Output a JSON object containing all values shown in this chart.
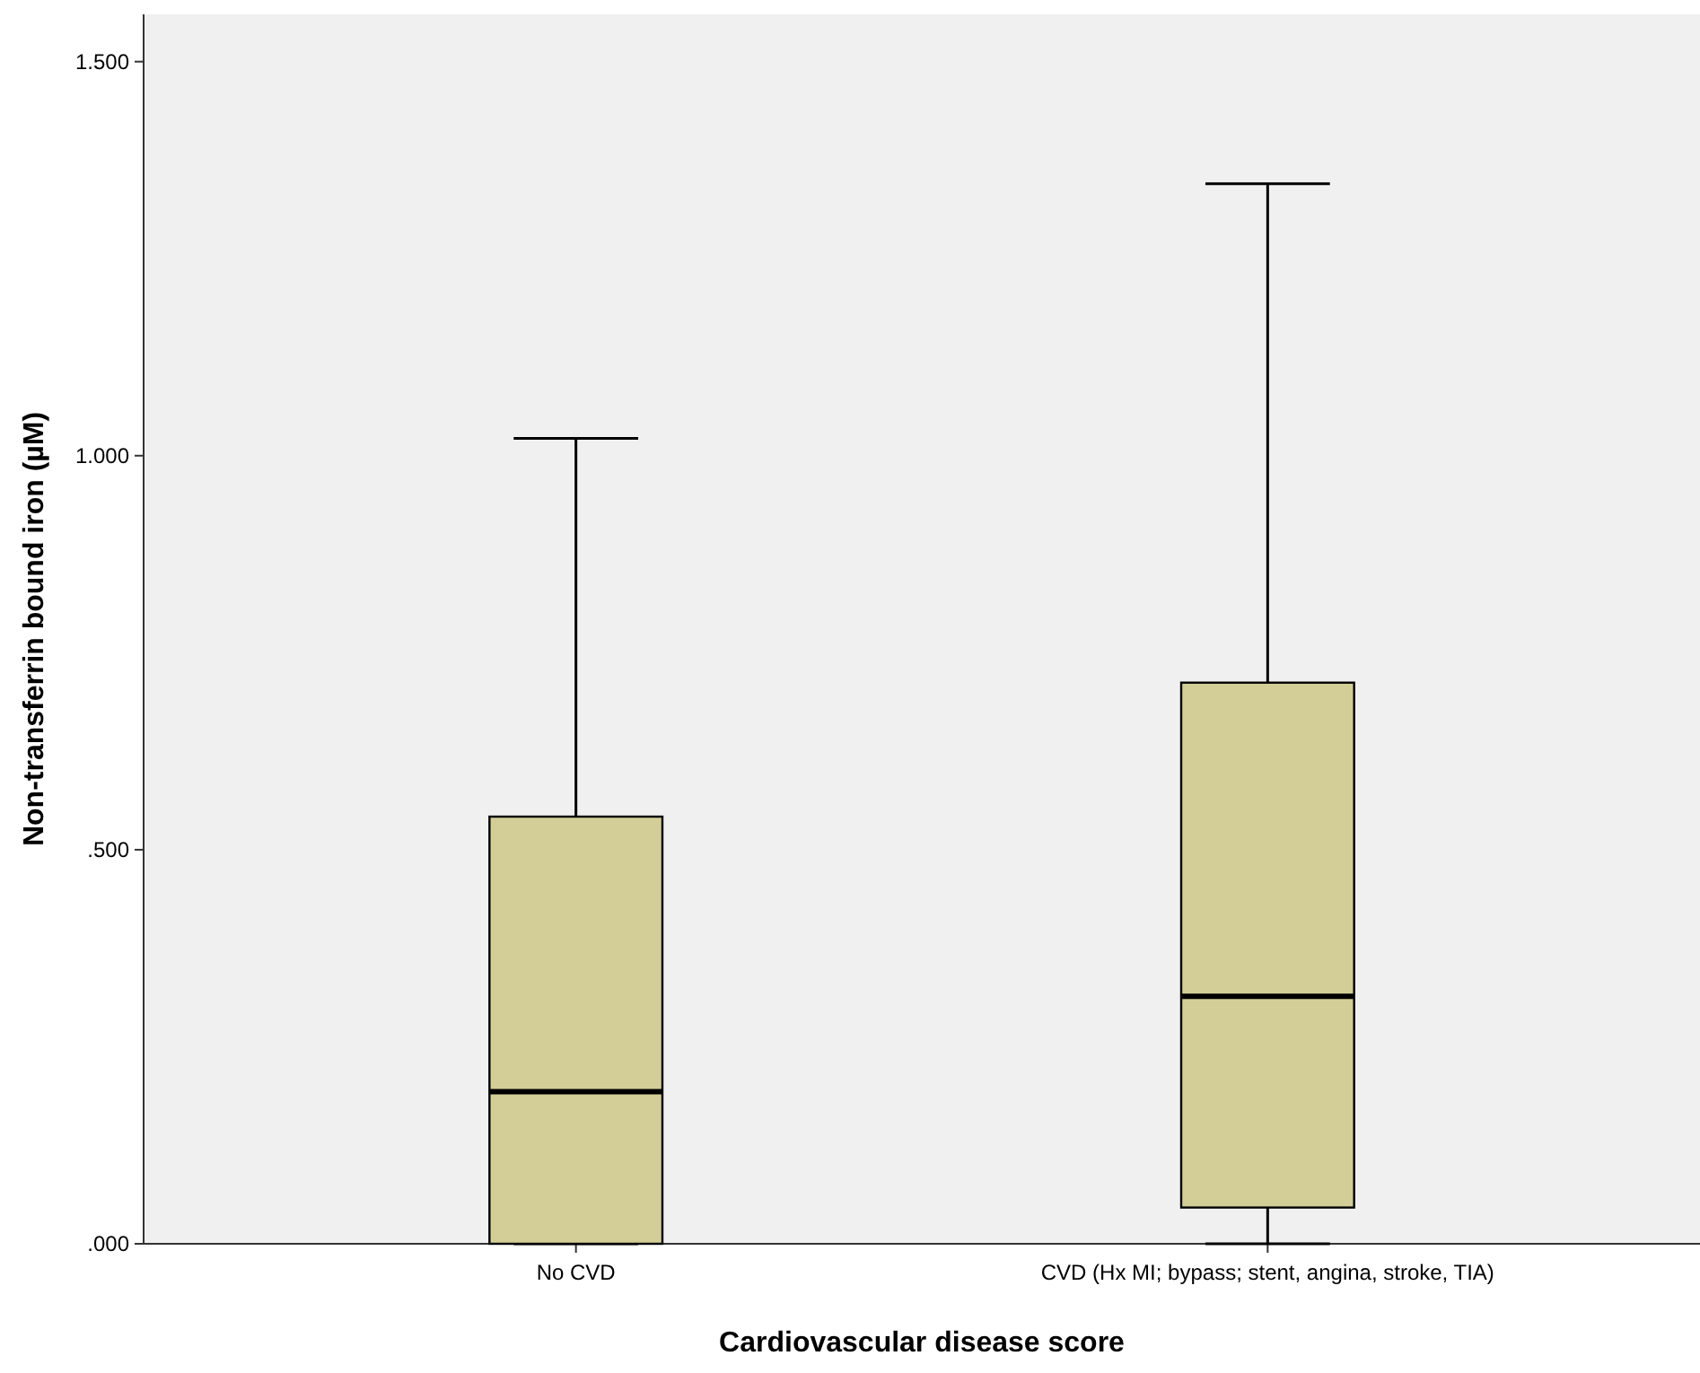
{
  "chart_data": {
    "type": "box",
    "xlabel": "Cardiovascular disease score",
    "ylabel": "Non-transferrin bound iron (µM)",
    "categories": [
      "No CVD",
      "CVD (Hx MI; bypass; stent, angina, stroke, TIA)"
    ],
    "boxes": [
      {
        "low": 0,
        "q1": 0,
        "median": 0.193,
        "q3": 0.542,
        "high": 1.022
      },
      {
        "low": 0,
        "q1": 0.046,
        "median": 0.314,
        "q3": 0.712,
        "high": 1.345
      }
    ],
    "color": "#d3ce97",
    "ylim": [
      0,
      1.56
    ],
    "yticks": [
      {
        "value": 0,
        "label": ".000"
      },
      {
        "value": 0.5,
        "label": ".500"
      },
      {
        "value": 1,
        "label": "1.000"
      },
      {
        "value": 1.5,
        "label": "1.500"
      }
    ],
    "grid": false
  }
}
